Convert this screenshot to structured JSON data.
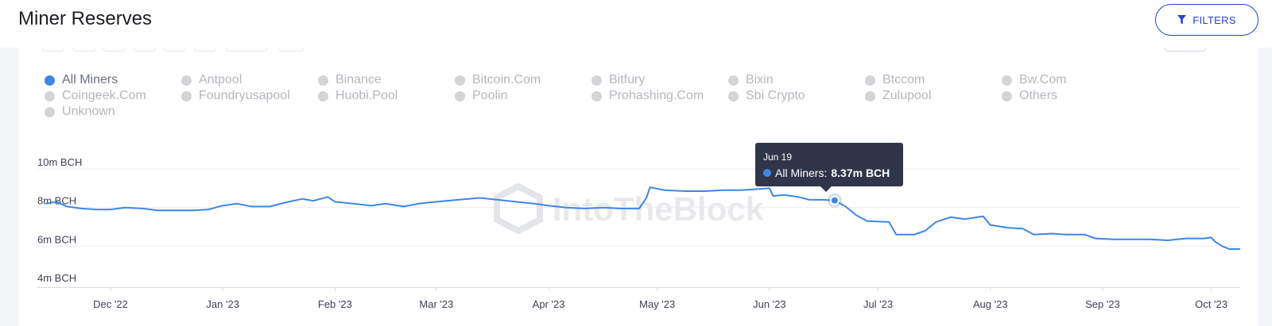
{
  "header": {
    "title": "Miner Reserves",
    "filters_label": "FILTERS",
    "filters_icon": "filter-icon"
  },
  "legend": [
    {
      "label": "All Miners",
      "active": true
    },
    {
      "label": "Antpool",
      "active": false
    },
    {
      "label": "Binance",
      "active": false
    },
    {
      "label": "Bitcoin.Com",
      "active": false
    },
    {
      "label": "Bitfury",
      "active": false
    },
    {
      "label": "Bixin",
      "active": false
    },
    {
      "label": "Btccom",
      "active": false
    },
    {
      "label": "Bw.Com",
      "active": false
    },
    {
      "label": "Coingeek.Com",
      "active": false
    },
    {
      "label": "Foundryusapool",
      "active": false
    },
    {
      "label": "Huobi.Pool",
      "active": false
    },
    {
      "label": "Poolin",
      "active": false
    },
    {
      "label": "Prohashing.Com",
      "active": false
    },
    {
      "label": "Sbi Crypto",
      "active": false
    },
    {
      "label": "Zulupool",
      "active": false
    },
    {
      "label": "Others",
      "active": false
    },
    {
      "label": "Unknown",
      "active": false
    }
  ],
  "watermark": "IntoTheBlock",
  "tooltip": {
    "date": "Jun 19",
    "series": "All Miners:",
    "value": "8.37m BCH"
  },
  "colors": {
    "line": "#3d86e6",
    "active_dot": "#3d86e6",
    "inactive_dot": "#d3d4d8",
    "tooltip_bg": "#30364a",
    "button": "#2b3ed6"
  },
  "chart_data": {
    "type": "line",
    "ylim": [
      4,
      10
    ],
    "y_ticks": [
      {
        "value": 10,
        "label": "10m BCH"
      },
      {
        "value": 8,
        "label": "8m BCH"
      },
      {
        "value": 6,
        "label": "6m BCH"
      },
      {
        "value": 4,
        "label": "4m BCH"
      }
    ],
    "x_range": [
      "2022-11-13",
      "2023-10-09"
    ],
    "x_ticks": [
      {
        "date": "2022-12-01",
        "label": "Dec '22"
      },
      {
        "date": "2023-01-01",
        "label": "Jan '23"
      },
      {
        "date": "2023-02-01",
        "label": "Feb '23"
      },
      {
        "date": "2023-03-01",
        "label": "Mar '23"
      },
      {
        "date": "2023-04-01",
        "label": "Apr '23"
      },
      {
        "date": "2023-05-01",
        "label": "May '23"
      },
      {
        "date": "2023-06-01",
        "label": "Jun '23"
      },
      {
        "date": "2023-07-01",
        "label": "Jul '23"
      },
      {
        "date": "2023-08-01",
        "label": "Aug '23"
      },
      {
        "date": "2023-09-01",
        "label": "Sep '23"
      },
      {
        "date": "2023-10-01",
        "label": "Oct '23"
      }
    ],
    "highlight": {
      "date": "2023-06-19",
      "value": 8.37
    },
    "series": [
      {
        "name": "All Miners",
        "points": [
          [
            "2022-11-13",
            8.2
          ],
          [
            "2022-11-16",
            8.3
          ],
          [
            "2022-11-19",
            8.05
          ],
          [
            "2022-11-23",
            7.95
          ],
          [
            "2022-11-27",
            7.9
          ],
          [
            "2022-12-01",
            7.9
          ],
          [
            "2022-12-05",
            8.0
          ],
          [
            "2022-12-10",
            7.95
          ],
          [
            "2022-12-14",
            7.85
          ],
          [
            "2022-12-19",
            7.85
          ],
          [
            "2022-12-24",
            7.85
          ],
          [
            "2022-12-28",
            7.9
          ],
          [
            "2023-01-01",
            8.1
          ],
          [
            "2023-01-05",
            8.2
          ],
          [
            "2023-01-09",
            8.05
          ],
          [
            "2023-01-14",
            8.05
          ],
          [
            "2023-01-18",
            8.25
          ],
          [
            "2023-01-23",
            8.45
          ],
          [
            "2023-01-26",
            8.35
          ],
          [
            "2023-01-30",
            8.55
          ],
          [
            "2023-02-01",
            8.3
          ],
          [
            "2023-02-06",
            8.2
          ],
          [
            "2023-02-11",
            8.1
          ],
          [
            "2023-02-15",
            8.2
          ],
          [
            "2023-02-20",
            8.05
          ],
          [
            "2023-02-24",
            8.2
          ],
          [
            "2023-03-01",
            8.3
          ],
          [
            "2023-03-07",
            8.4
          ],
          [
            "2023-03-13",
            8.5
          ],
          [
            "2023-03-18",
            8.4
          ],
          [
            "2023-03-23",
            8.3
          ],
          [
            "2023-03-28",
            8.2
          ],
          [
            "2023-04-01",
            8.1
          ],
          [
            "2023-04-06",
            8.0
          ],
          [
            "2023-04-11",
            7.95
          ],
          [
            "2023-04-16",
            8.0
          ],
          [
            "2023-04-21",
            7.95
          ],
          [
            "2023-04-26",
            7.95
          ],
          [
            "2023-04-28",
            8.5
          ],
          [
            "2023-04-29",
            9.05
          ],
          [
            "2023-05-03",
            8.9
          ],
          [
            "2023-05-09",
            8.85
          ],
          [
            "2023-05-14",
            8.85
          ],
          [
            "2023-05-19",
            8.9
          ],
          [
            "2023-05-24",
            8.9
          ],
          [
            "2023-05-28",
            8.95
          ],
          [
            "2023-06-01",
            9.0
          ],
          [
            "2023-06-02",
            8.6
          ],
          [
            "2023-06-05",
            8.65
          ],
          [
            "2023-06-09",
            8.55
          ],
          [
            "2023-06-12",
            8.4
          ],
          [
            "2023-06-16",
            8.4
          ],
          [
            "2023-06-19",
            8.37
          ],
          [
            "2023-06-22",
            8.05
          ],
          [
            "2023-06-25",
            7.6
          ],
          [
            "2023-06-28",
            7.3
          ],
          [
            "2023-07-04",
            7.25
          ],
          [
            "2023-07-06",
            6.6
          ],
          [
            "2023-07-11",
            6.6
          ],
          [
            "2023-07-14",
            6.8
          ],
          [
            "2023-07-17",
            7.25
          ],
          [
            "2023-07-21",
            7.5
          ],
          [
            "2023-07-25",
            7.4
          ],
          [
            "2023-07-30",
            7.55
          ],
          [
            "2023-08-01",
            7.1
          ],
          [
            "2023-08-06",
            6.95
          ],
          [
            "2023-08-10",
            6.9
          ],
          [
            "2023-08-13",
            6.6
          ],
          [
            "2023-08-18",
            6.65
          ],
          [
            "2023-08-22",
            6.6
          ],
          [
            "2023-08-27",
            6.6
          ],
          [
            "2023-08-30",
            6.4
          ],
          [
            "2023-09-04",
            6.35
          ],
          [
            "2023-09-09",
            6.35
          ],
          [
            "2023-09-14",
            6.35
          ],
          [
            "2023-09-19",
            6.3
          ],
          [
            "2023-09-24",
            6.4
          ],
          [
            "2023-09-29",
            6.4
          ],
          [
            "2023-10-01",
            6.45
          ],
          [
            "2023-10-02",
            6.25
          ],
          [
            "2023-10-04",
            6.0
          ],
          [
            "2023-10-06",
            5.85
          ],
          [
            "2023-10-09",
            5.85
          ]
        ]
      }
    ]
  }
}
